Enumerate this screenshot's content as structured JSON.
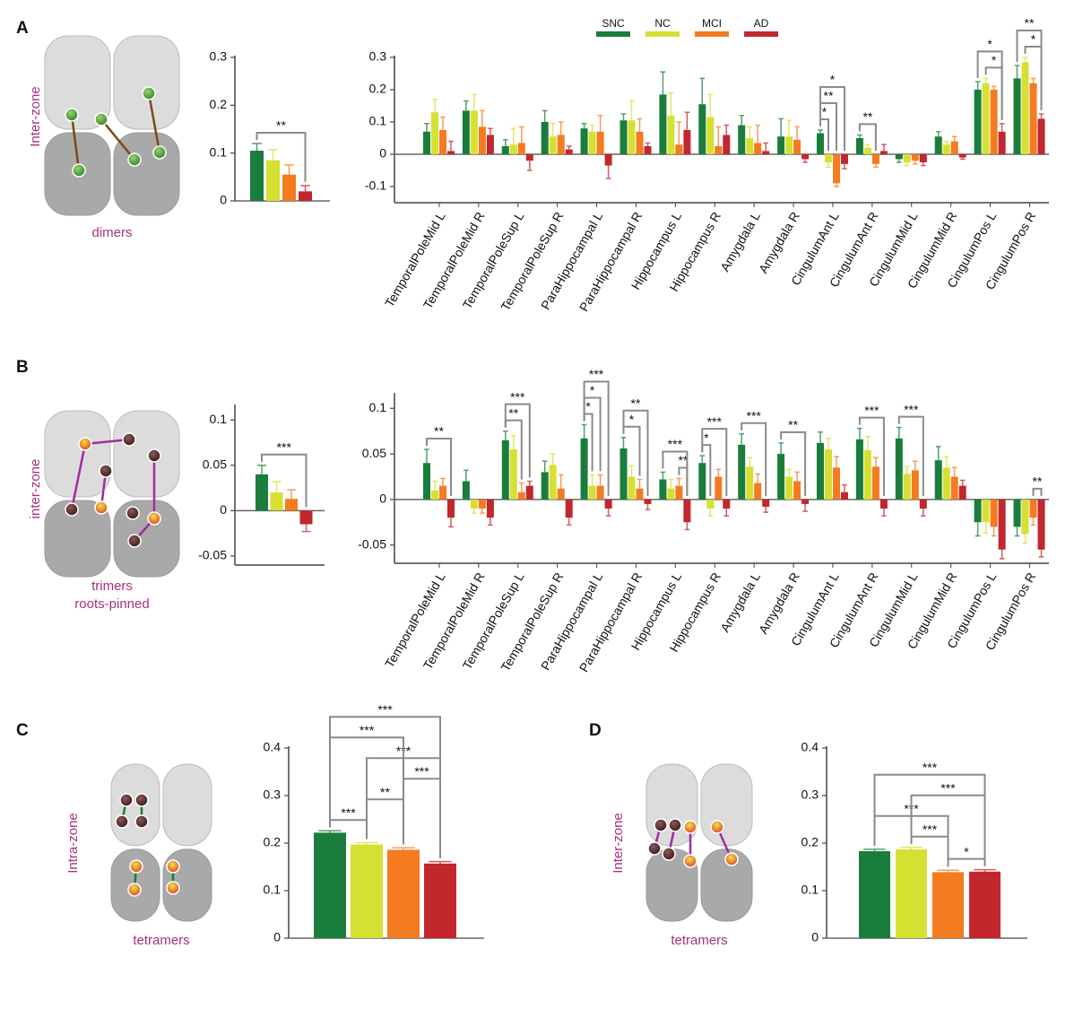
{
  "panels": [
    {
      "letter": "A",
      "zone": "Inter-zone",
      "caption": [
        "dimers"
      ]
    },
    {
      "letter": "B",
      "zone": "inter-zone",
      "caption": [
        "trimers",
        "roots-pinned"
      ]
    },
    {
      "letter": "C",
      "zone": "Intra-zone",
      "caption": [
        "tetramers"
      ]
    },
    {
      "letter": "D",
      "zone": "Inter-zone",
      "caption": [
        "tetramers"
      ]
    }
  ],
  "chart_data": [
    {
      "type": "bar",
      "legend": false,
      "ylim": [
        0,
        0.3
      ],
      "yticks": [
        0,
        0.1,
        0.2,
        0.3
      ],
      "series": [
        {
          "name": "SNC",
          "color": "#1a7d3c",
          "values": [
            0.105
          ],
          "errors": [
            0.015
          ]
        },
        {
          "name": "NC",
          "color": "#d6e032",
          "values": [
            0.085
          ],
          "errors": [
            0.022
          ]
        },
        {
          "name": "MCI",
          "color": "#f47b20",
          "values": [
            0.055
          ],
          "errors": [
            0.02
          ]
        },
        {
          "name": "AD",
          "color": "#c1272d",
          "values": [
            0.02
          ],
          "errors": [
            0.012
          ]
        }
      ],
      "brackets": [
        {
          "text": "**",
          "from": "SNC",
          "to": "AD"
        }
      ]
    },
    {
      "type": "bar",
      "legend": true,
      "ylim": [
        -0.15,
        0.3
      ],
      "yticks": [
        -0.1,
        0,
        0.1,
        0.2,
        0.3
      ],
      "categories": [
        "TemporalPoleMid L",
        "TemporalPoleMid R",
        "TemporalPoleSup L",
        "TemporalPoleSup R",
        "ParaHippocampal L",
        "ParaHippocampal R",
        "Hippocampus L",
        "Hippocampus R",
        "Amygdala L",
        "Amygdala R",
        "CingulumAnt L",
        "CingulumAnt R",
        "CingulumMid L",
        "CingulumMid R",
        "CingulumPos L",
        "CingulumPos R"
      ],
      "series": [
        {
          "name": "SNC",
          "color": "#1a7d3c",
          "values": [
            0.07,
            0.135,
            0.025,
            0.1,
            0.08,
            0.105,
            0.185,
            0.155,
            0.09,
            0.055,
            0.065,
            0.05,
            -0.015,
            0.055,
            0.2,
            0.235
          ],
          "errors": [
            0.025,
            0.03,
            0.02,
            0.035,
            0.015,
            0.02,
            0.07,
            0.08,
            0.03,
            0.055,
            0.01,
            0.01,
            0.01,
            0.015,
            0.025,
            0.04
          ]
        },
        {
          "name": "NC",
          "color": "#d6e032",
          "values": [
            0.13,
            0.135,
            0.03,
            0.055,
            0.07,
            0.105,
            0.12,
            0.115,
            0.05,
            0.055,
            -0.025,
            0.02,
            -0.025,
            0.03,
            0.22,
            0.285
          ],
          "errors": [
            0.04,
            0.05,
            0.05,
            0.04,
            0.02,
            0.06,
            0.07,
            0.07,
            0.035,
            0.05,
            0.015,
            0.01,
            0.01,
            0.01,
            0.015,
            0.015
          ]
        },
        {
          "name": "MCI",
          "color": "#f47b20",
          "values": [
            0.075,
            0.085,
            0.035,
            0.06,
            0.07,
            0.07,
            0.03,
            0.025,
            0.035,
            0.045,
            -0.09,
            -0.03,
            -0.02,
            0.04,
            0.2,
            0.22
          ],
          "errors": [
            0.04,
            0.05,
            0.05,
            0.04,
            0.05,
            0.04,
            0.07,
            0.06,
            0.055,
            0.04,
            0.01,
            0.01,
            0.01,
            0.015,
            0.01,
            0.015
          ]
        },
        {
          "name": "AD",
          "color": "#c1272d",
          "values": [
            0.01,
            0.06,
            -0.02,
            0.015,
            -0.035,
            0.025,
            0.075,
            0.06,
            0.01,
            -0.015,
            -0.03,
            0.01,
            -0.025,
            -0.01,
            0.07,
            0.11
          ],
          "errors": [
            0.03,
            0.02,
            0.03,
            0.01,
            0.04,
            0.01,
            0.055,
            0.03,
            0.025,
            0.01,
            0.015,
            0.02,
            0.01,
            0.005,
            0.025,
            0.015
          ]
        }
      ],
      "brackets": [
        {
          "text": "*",
          "category": "CingulumAnt L",
          "from": "SNC",
          "to": "NC"
        },
        {
          "text": "**",
          "category": "CingulumAnt L",
          "from": "SNC",
          "to": "MCI"
        },
        {
          "text": "*",
          "category": "CingulumAnt L",
          "from": "SNC",
          "to": "AD"
        },
        {
          "text": "**",
          "category": "CingulumAnt R",
          "from": "SNC",
          "to": "MCI"
        },
        {
          "text": "*",
          "category": "CingulumPos L",
          "from": "NC",
          "to": "AD"
        },
        {
          "text": "*",
          "category": "CingulumPos L",
          "from": "SNC",
          "to": "AD"
        },
        {
          "text": "*",
          "category": "CingulumPos R",
          "from": "NC",
          "to": "AD"
        },
        {
          "text": "**",
          "category": "CingulumPos R",
          "from": "SNC",
          "to": "AD"
        }
      ]
    },
    {
      "type": "bar",
      "legend": false,
      "ylim": [
        -0.06,
        0.115
      ],
      "yticks": [
        -0.05,
        0,
        0.05,
        0.1
      ],
      "series": [
        {
          "name": "SNC",
          "color": "#1a7d3c",
          "values": [
            0.04
          ],
          "errors": [
            0.01
          ]
        },
        {
          "name": "NC",
          "color": "#d6e032",
          "values": [
            0.02
          ],
          "errors": [
            0.012
          ]
        },
        {
          "name": "MCI",
          "color": "#f47b20",
          "values": [
            0.013
          ],
          "errors": [
            0.01
          ]
        },
        {
          "name": "AD",
          "color": "#c1272d",
          "values": [
            -0.015
          ],
          "errors": [
            0.008
          ]
        }
      ],
      "brackets": [
        {
          "text": "***",
          "from": "SNC",
          "to": "AD"
        }
      ]
    },
    {
      "type": "bar",
      "legend": false,
      "ylim": [
        -0.07,
        0.115
      ],
      "yticks": [
        -0.05,
        0,
        0.05,
        0.1
      ],
      "categories": [
        "TemporalPoleMid L",
        "TemporalPoleMid R",
        "TemporalPoleSup L",
        "TemporalPoleSup R",
        "ParaHippocampal L",
        "ParaHippocampal R",
        "Hippocampus L",
        "Hippocampus R",
        "Amygdala L",
        "Amygdala R",
        "CingulumAnt L",
        "CingulumAnt R",
        "CingulumMid L",
        "CingulumMid R",
        "CingulumPos L",
        "CingulumPos R"
      ],
      "series": [
        {
          "name": "SNC",
          "color": "#1a7d3c",
          "values": [
            0.04,
            0.02,
            0.065,
            0.03,
            0.067,
            0.056,
            0.022,
            0.04,
            0.06,
            0.05,
            0.062,
            0.066,
            0.067,
            0.043,
            -0.025,
            -0.03
          ],
          "errors": [
            0.015,
            0.012,
            0.01,
            0.012,
            0.015,
            0.012,
            0.008,
            0.008,
            0.012,
            0.012,
            0.012,
            0.012,
            0.012,
            0.015,
            0.015,
            0.01
          ]
        },
        {
          "name": "NC",
          "color": "#d6e032",
          "values": [
            0.01,
            -0.01,
            0.055,
            0.038,
            0.015,
            0.025,
            0.012,
            -0.01,
            0.036,
            0.025,
            0.055,
            0.054,
            0.028,
            0.035,
            -0.025,
            -0.038
          ],
          "errors": [
            0.01,
            0.005,
            0.015,
            0.012,
            0.012,
            0.012,
            0.01,
            0.008,
            0.01,
            0.008,
            0.012,
            0.015,
            0.008,
            0.012,
            0.012,
            0.01
          ]
        },
        {
          "name": "MCI",
          "color": "#f47b20",
          "values": [
            0.015,
            -0.01,
            0.008,
            0.012,
            0.015,
            0.012,
            0.015,
            0.025,
            0.018,
            0.02,
            0.035,
            0.036,
            0.032,
            0.025,
            -0.03,
            -0.02
          ],
          "errors": [
            0.008,
            0.005,
            0.01,
            0.015,
            0.012,
            0.01,
            0.008,
            0.008,
            0.01,
            0.01,
            0.012,
            0.01,
            0.01,
            0.01,
            0.01,
            0.008
          ]
        },
        {
          "name": "AD",
          "color": "#c1272d",
          "values": [
            -0.02,
            -0.02,
            0.015,
            -0.02,
            -0.01,
            -0.005,
            -0.025,
            -0.01,
            -0.008,
            -0.005,
            0.008,
            -0.01,
            -0.01,
            0.015,
            -0.055,
            -0.055
          ],
          "errors": [
            0.01,
            0.008,
            0.005,
            0.008,
            0.008,
            0.006,
            0.008,
            0.008,
            0.006,
            0.008,
            0.008,
            0.008,
            0.008,
            0.006,
            0.01,
            0.008
          ]
        }
      ],
      "brackets": [
        {
          "text": "**",
          "category": "TemporalPoleMid L",
          "from": "SNC",
          "to": "AD"
        },
        {
          "text": "**",
          "category": "TemporalPoleSup L",
          "from": "SNC",
          "to": "MCI"
        },
        {
          "text": "***",
          "category": "TemporalPoleSup L",
          "from": "SNC",
          "to": "AD"
        },
        {
          "text": "*",
          "category": "ParaHippocampal L",
          "from": "SNC",
          "to": "NC"
        },
        {
          "text": "*",
          "category": "ParaHippocampal L",
          "from": "SNC",
          "to": "MCI"
        },
        {
          "text": "***",
          "category": "ParaHippocampal L",
          "from": "SNC",
          "to": "AD"
        },
        {
          "text": "*",
          "category": "ParaHippocampal R",
          "from": "SNC",
          "to": "MCI"
        },
        {
          "text": "**",
          "category": "ParaHippocampal R",
          "from": "SNC",
          "to": "AD"
        },
        {
          "text": "**",
          "category": "Hippocampus L",
          "from": "MCI",
          "to": "AD"
        },
        {
          "text": "***",
          "category": "Hippocampus L",
          "from": "SNC",
          "to": "AD"
        },
        {
          "text": "*",
          "category": "Hippocampus R",
          "from": "SNC",
          "to": "NC"
        },
        {
          "text": "***",
          "category": "Hippocampus R",
          "from": "SNC",
          "to": "AD"
        },
        {
          "text": "***",
          "category": "Amygdala L",
          "from": "SNC",
          "to": "AD"
        },
        {
          "text": "**",
          "category": "Amygdala R",
          "from": "SNC",
          "to": "AD"
        },
        {
          "text": "***",
          "category": "CingulumAnt R",
          "from": "SNC",
          "to": "AD"
        },
        {
          "text": "***",
          "category": "CingulumMid L",
          "from": "SNC",
          "to": "AD"
        },
        {
          "text": "**",
          "category": "CingulumPos R",
          "from": "MCI",
          "to": "AD"
        }
      ]
    },
    {
      "type": "bar",
      "legend": false,
      "ylim": [
        0,
        0.4
      ],
      "yticks": [
        0,
        0.1,
        0.2,
        0.3,
        0.4
      ],
      "series": [
        {
          "name": "SNC",
          "color": "#1a7d3c",
          "values": [
            0.222
          ],
          "errors": [
            0.004
          ]
        },
        {
          "name": "NC",
          "color": "#d6e032",
          "values": [
            0.197
          ],
          "errors": [
            0.004
          ]
        },
        {
          "name": "MCI",
          "color": "#f47b20",
          "values": [
            0.186
          ],
          "errors": [
            0.004
          ]
        },
        {
          "name": "AD",
          "color": "#c1272d",
          "values": [
            0.157
          ],
          "errors": [
            0.004
          ]
        }
      ],
      "brackets": [
        {
          "text": "***",
          "from": "SNC",
          "to": "NC"
        },
        {
          "text": "**",
          "from": "NC",
          "to": "MCI"
        },
        {
          "text": "***",
          "from": "MCI",
          "to": "AD"
        },
        {
          "text": "***",
          "from": "NC",
          "to": "AD"
        },
        {
          "text": "***",
          "from": "SNC",
          "to": "MCI"
        },
        {
          "text": "***",
          "from": "SNC",
          "to": "AD"
        }
      ]
    },
    {
      "type": "bar",
      "legend": false,
      "ylim": [
        0,
        0.4
      ],
      "yticks": [
        0,
        0.1,
        0.2,
        0.3,
        0.4
      ],
      "series": [
        {
          "name": "SNC",
          "color": "#1a7d3c",
          "values": [
            0.183
          ],
          "errors": [
            0.004
          ]
        },
        {
          "name": "NC",
          "color": "#d6e032",
          "values": [
            0.187
          ],
          "errors": [
            0.004
          ]
        },
        {
          "name": "MCI",
          "color": "#f47b20",
          "values": [
            0.139
          ],
          "errors": [
            0.004
          ]
        },
        {
          "name": "AD",
          "color": "#c1272d",
          "values": [
            0.14
          ],
          "errors": [
            0.004
          ]
        }
      ],
      "brackets": [
        {
          "text": "*",
          "from": "MCI",
          "to": "AD"
        },
        {
          "text": "***",
          "from": "NC",
          "to": "MCI"
        },
        {
          "text": "***",
          "from": "SNC",
          "to": "MCI"
        },
        {
          "text": "***",
          "from": "NC",
          "to": "AD"
        },
        {
          "text": "***",
          "from": "SNC",
          "to": "AD"
        }
      ]
    }
  ]
}
